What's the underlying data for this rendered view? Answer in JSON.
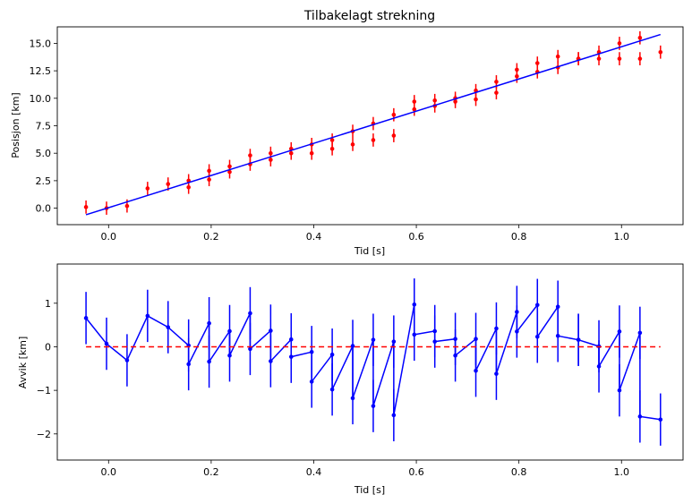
{
  "chart_data": [
    {
      "type": "scatter",
      "title": "Tilbakelagt strekning",
      "xlabel": "Tid [s]",
      "ylabel": "Posisjon [km]",
      "xlim": [
        -0.1,
        1.12
      ],
      "ylim": [
        -1.5,
        16.5
      ],
      "xticks": [
        "0.0",
        "0.2",
        "0.4",
        "0.6",
        "0.8",
        "1.0"
      ],
      "xtick_values": [
        0.0,
        0.2,
        0.4,
        0.6,
        0.8,
        1.0
      ],
      "yticks": [
        "0.0",
        "2.5",
        "5.0",
        "7.5",
        "10.0",
        "12.5",
        "15.0"
      ],
      "ytick_values": [
        0.0,
        2.5,
        5.0,
        7.5,
        10.0,
        12.5,
        15.0
      ],
      "series": [
        {
          "kind": "errorbar-points",
          "color": "#ff0000",
          "x": [
            -0.044,
            -0.004,
            0.036,
            0.076,
            0.116,
            0.156,
            0.156,
            0.196,
            0.196,
            0.236,
            0.236,
            0.276,
            0.276,
            0.316,
            0.316,
            0.356,
            0.356,
            0.396,
            0.396,
            0.436,
            0.436,
            0.476,
            0.476,
            0.516,
            0.516,
            0.556,
            0.556,
            0.596,
            0.596,
            0.636,
            0.636,
            0.676,
            0.676,
            0.716,
            0.716,
            0.756,
            0.756,
            0.796,
            0.796,
            0.836,
            0.836,
            0.876,
            0.876,
            0.916,
            0.916,
            0.956,
            0.956,
            0.996,
            0.996,
            1.036,
            1.036,
            1.076
          ],
          "y": [
            0.1,
            0.0,
            0.2,
            1.8,
            2.2,
            2.5,
            1.9,
            3.4,
            2.6,
            3.8,
            3.3,
            4.8,
            4.0,
            5.0,
            4.4,
            5.4,
            5.0,
            5.8,
            5.0,
            6.2,
            5.4,
            7.0,
            5.8,
            7.7,
            6.2,
            8.5,
            6.6,
            9.7,
            9.0,
            9.8,
            9.3,
            10.0,
            9.7,
            10.7,
            9.9,
            11.5,
            10.5,
            12.6,
            12.0,
            13.2,
            12.4,
            13.8,
            12.8,
            13.6,
            13.6,
            14.2,
            13.6,
            15.0,
            13.6,
            15.5,
            13.6,
            14.2
          ],
          "error": 0.6
        },
        {
          "kind": "line",
          "color": "#0000ff",
          "x": [
            -0.044,
            1.076
          ],
          "y": [
            -0.6,
            15.8
          ]
        }
      ]
    },
    {
      "type": "line",
      "title": "",
      "xlabel": "Tid [s]",
      "ylabel": "Avvik [km]",
      "xlim": [
        -0.1,
        1.12
      ],
      "ylim": [
        -2.6,
        1.9
      ],
      "xticks": [
        "0.0",
        "0.2",
        "0.4",
        "0.6",
        "0.8",
        "1.0"
      ],
      "xtick_values": [
        0.0,
        0.2,
        0.4,
        0.6,
        0.8,
        1.0
      ],
      "yticks": [
        "−2",
        "−1",
        "0",
        "1"
      ],
      "ytick_values": [
        -2,
        -1,
        0,
        1
      ],
      "series": [
        {
          "kind": "errorbar-line",
          "color": "#0000ff",
          "x": [
            -0.044,
            -0.004,
            0.036,
            0.076,
            0.116,
            0.156,
            0.156,
            0.196,
            0.196,
            0.236,
            0.236,
            0.276,
            0.276,
            0.316,
            0.316,
            0.356,
            0.356,
            0.396,
            0.396,
            0.436,
            0.436,
            0.476,
            0.476,
            0.516,
            0.516,
            0.556,
            0.556,
            0.596,
            0.596,
            0.636,
            0.636,
            0.676,
            0.676,
            0.716,
            0.716,
            0.756,
            0.756,
            0.796,
            0.796,
            0.836,
            0.836,
            0.876,
            0.876,
            0.916,
            0.916,
            0.956,
            0.956,
            0.996,
            0.996,
            1.036,
            1.036,
            1.076
          ],
          "y": [
            0.66,
            0.07,
            -0.31,
            0.71,
            0.45,
            0.03,
            -0.4,
            0.54,
            -0.34,
            0.36,
            -0.2,
            0.77,
            -0.05,
            0.37,
            -0.33,
            0.17,
            -0.23,
            -0.12,
            -0.8,
            -0.18,
            -0.98,
            0.02,
            -1.18,
            0.16,
            -1.36,
            0.12,
            -1.57,
            0.97,
            0.28,
            0.36,
            0.12,
            0.18,
            -0.2,
            0.18,
            -0.55,
            0.42,
            -0.62,
            0.8,
            0.35,
            0.96,
            0.23,
            0.92,
            0.25,
            0.16,
            0.16,
            0.01,
            -0.45,
            0.35,
            -1.0,
            0.32,
            -1.6,
            -1.67
          ],
          "error": 0.6
        },
        {
          "kind": "dashed-line",
          "color": "#ff0000",
          "x": [
            -0.044,
            1.076
          ],
          "y": [
            0.0,
            0.0
          ]
        }
      ]
    }
  ]
}
